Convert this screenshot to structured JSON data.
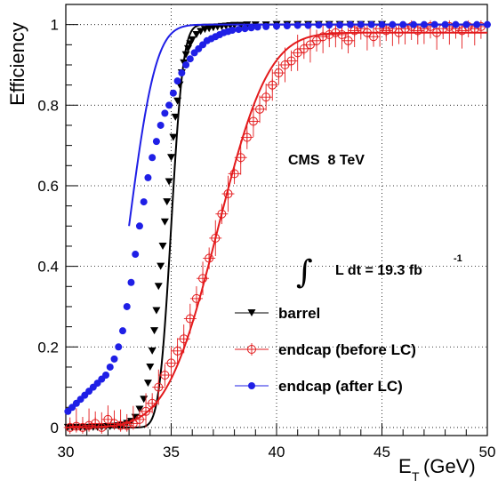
{
  "chart_data": {
    "type": "scatter",
    "title": "",
    "xlabel": "E",
    "xlabel_sub": "T",
    "xlabel_unit": "(GeV)",
    "ylabel": "Efficiency",
    "xlim": [
      30,
      50
    ],
    "ylim": [
      -0.02,
      1.05
    ],
    "x_ticks": [
      30,
      35,
      40,
      45,
      50
    ],
    "y_ticks": [
      0,
      0.2,
      0.4,
      0.6,
      0.8,
      1
    ],
    "x_tick_labels": [
      "30",
      "35",
      "40",
      "45",
      "50"
    ],
    "y_tick_labels": [
      "0",
      "0.2",
      "0.4",
      "0.6",
      "0.8",
      "1"
    ],
    "grid": true,
    "legend_position": "bottom-right",
    "annotations": {
      "experiment": "CMS  8 TeV",
      "integral_symbol": "∫",
      "lumi_text": "L dt = 19.3 fb",
      "lumi_exp": "-1"
    },
    "series": [
      {
        "name": "barrel",
        "color": "#000000",
        "marker": "triangle-down",
        "x": [
          30.1,
          30.3,
          30.5,
          30.7,
          30.9,
          31.1,
          31.3,
          31.5,
          31.7,
          31.9,
          32.1,
          32.3,
          32.5,
          32.7,
          32.9,
          33.1,
          33.3,
          33.5,
          33.7,
          33.9,
          34.0,
          34.1,
          34.2,
          34.3,
          34.4,
          34.5,
          34.6,
          34.7,
          34.8,
          34.9,
          35.0,
          35.1,
          35.2,
          35.3,
          35.4,
          35.5,
          35.6,
          35.7,
          35.8,
          35.9,
          36.0,
          36.2,
          36.4,
          36.6,
          36.8,
          37.0,
          37.2,
          37.4,
          37.6,
          37.8,
          38.0,
          38.3,
          38.6,
          39.0,
          39.5,
          40.0,
          40.5,
          41.0,
          41.5,
          42.0,
          42.5,
          43.0,
          43.5,
          44.0,
          44.5,
          45.0
        ],
        "y": [
          0.0,
          0.0,
          0.0,
          0.0,
          0.0,
          0.0,
          0.0,
          0.0,
          0.0,
          0.002,
          0.002,
          0.003,
          0.004,
          0.006,
          0.01,
          0.015,
          0.025,
          0.045,
          0.07,
          0.11,
          0.15,
          0.19,
          0.24,
          0.29,
          0.35,
          0.4,
          0.45,
          0.51,
          0.56,
          0.61,
          0.67,
          0.72,
          0.77,
          0.81,
          0.85,
          0.88,
          0.905,
          0.925,
          0.94,
          0.952,
          0.962,
          0.975,
          0.983,
          0.988,
          0.99,
          0.992,
          0.994,
          0.995,
          0.996,
          0.997,
          0.998,
          0.998,
          0.999,
          0.999,
          0.999,
          1.0,
          1.0,
          1.0,
          1.0,
          1.0,
          1.0,
          1.0,
          1.0,
          1.0,
          1.0,
          1.0
        ],
        "fit": {
          "mu": 35.0,
          "sigma": 0.45,
          "plateau": 1.0
        }
      },
      {
        "name": "endcap (before LC)",
        "color": "#e31a1c",
        "marker": "circle-open-cross",
        "x": [
          30.2,
          30.5,
          30.8,
          31.1,
          31.4,
          31.7,
          32.0,
          32.3,
          32.6,
          32.9,
          33.2,
          33.5,
          33.8,
          34.1,
          34.4,
          34.7,
          35.0,
          35.3,
          35.6,
          35.9,
          36.2,
          36.5,
          36.8,
          37.1,
          37.4,
          37.7,
          38.0,
          38.3,
          38.6,
          38.9,
          39.2,
          39.5,
          39.8,
          40.1,
          40.4,
          40.7,
          41.0,
          41.3,
          41.6,
          41.9,
          42.2,
          42.5,
          42.8,
          43.1,
          43.4,
          43.7,
          44.0,
          44.3,
          44.6,
          44.9,
          45.2,
          45.5,
          45.8,
          46.1,
          46.4,
          46.7,
          47.0,
          47.3,
          47.6,
          47.9,
          48.2,
          48.5,
          48.8,
          49.1,
          49.4,
          49.7
        ],
        "y": [
          0.0,
          0.003,
          0.0,
          0.005,
          0.01,
          0.0,
          0.02,
          0.01,
          0.005,
          0.005,
          0.01,
          0.02,
          0.04,
          0.06,
          0.1,
          0.13,
          0.16,
          0.19,
          0.22,
          0.27,
          0.32,
          0.37,
          0.42,
          0.47,
          0.53,
          0.58,
          0.63,
          0.67,
          0.72,
          0.76,
          0.79,
          0.82,
          0.85,
          0.88,
          0.9,
          0.91,
          0.93,
          0.94,
          0.95,
          0.96,
          0.97,
          0.975,
          0.98,
          0.975,
          0.96,
          0.985,
          0.99,
          0.98,
          0.97,
          0.99,
          0.985,
          0.99,
          0.98,
          0.99,
          0.995,
          0.985,
          0.99,
          0.995,
          0.98,
          0.99,
          0.995,
          0.99,
          0.985,
          0.995,
          0.99,
          0.995
        ],
        "fit": {
          "mu": 37.2,
          "sigma": 1.9,
          "plateau": 0.98
        }
      },
      {
        "name": "endcap (after LC)",
        "color": "#1f1fe6",
        "marker": "circle-filled",
        "x": [
          30.1,
          30.3,
          30.5,
          30.7,
          30.9,
          31.1,
          31.3,
          31.5,
          31.7,
          31.9,
          32.1,
          32.3,
          32.5,
          32.7,
          32.9,
          33.1,
          33.3,
          33.5,
          33.7,
          33.9,
          34.1,
          34.3,
          34.5,
          34.7,
          34.9,
          35.1,
          35.3,
          35.5,
          35.7,
          35.9,
          36.1,
          36.3,
          36.5,
          36.7,
          36.9,
          37.1,
          37.3,
          37.5,
          37.7,
          37.9,
          38.2,
          38.5,
          38.8,
          39.1,
          39.5,
          40.0,
          40.5,
          41.0,
          41.5,
          42.0,
          42.5,
          43.0,
          43.5,
          44.0,
          44.5,
          45.0,
          45.5,
          46.0,
          46.5,
          47.0,
          47.5,
          48.0,
          48.5,
          49.0,
          49.5,
          50.0
        ],
        "y": [
          0.04,
          0.05,
          0.06,
          0.07,
          0.08,
          0.09,
          0.1,
          0.11,
          0.12,
          0.13,
          0.15,
          0.17,
          0.2,
          0.24,
          0.3,
          0.36,
          0.43,
          0.5,
          0.56,
          0.62,
          0.67,
          0.71,
          0.75,
          0.78,
          0.8,
          0.83,
          0.86,
          0.88,
          0.9,
          0.915,
          0.93,
          0.94,
          0.95,
          0.96,
          0.965,
          0.97,
          0.975,
          0.98,
          0.983,
          0.986,
          0.988,
          0.99,
          0.992,
          0.994,
          0.995,
          0.996,
          0.997,
          0.998,
          0.998,
          0.999,
          0.999,
          0.999,
          1.0,
          1.0,
          1.0,
          1.0,
          1.0,
          1.0,
          1.0,
          1.0,
          1.0,
          1.0,
          1.0,
          1.0,
          1.0,
          1.0
        ],
        "fit": {
          "mu": 33.0,
          "sigma": 1.0,
          "plateau": 1.0,
          "x_start": 33.0
        }
      }
    ]
  }
}
